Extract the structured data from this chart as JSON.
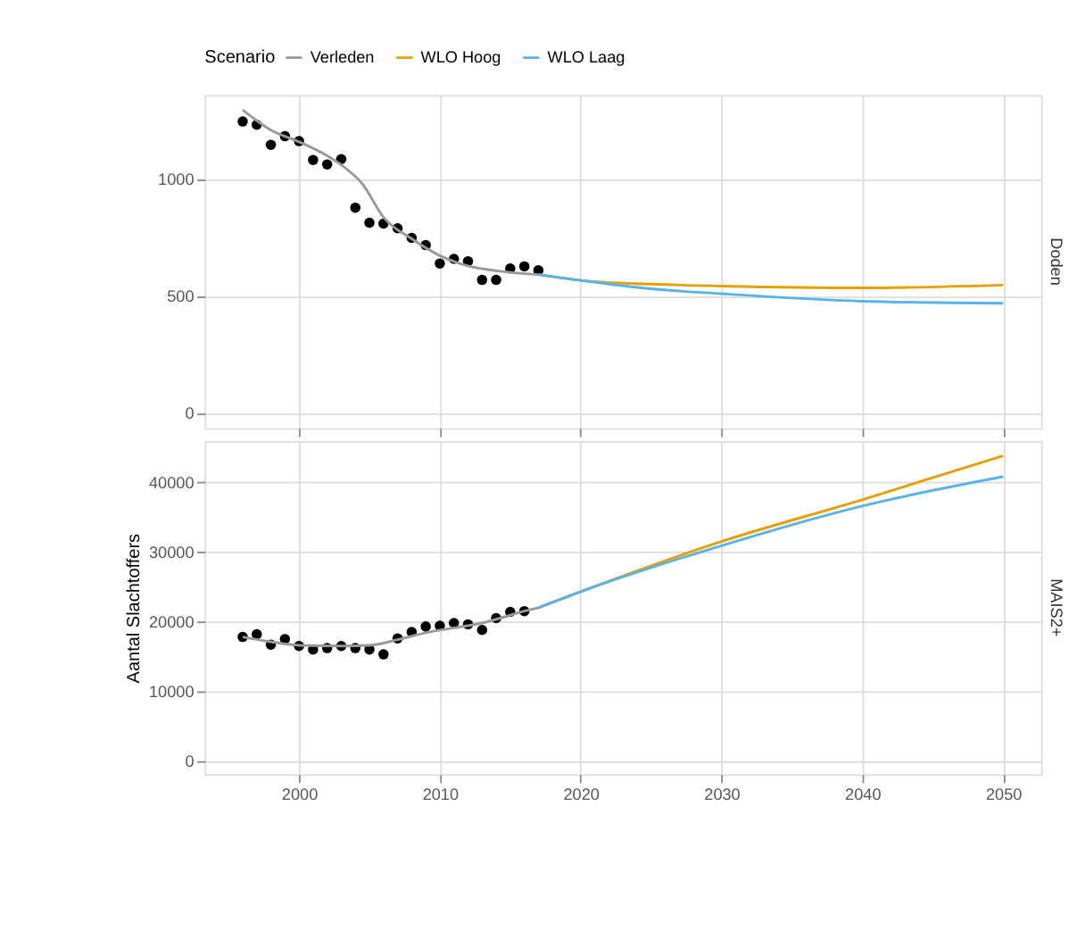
{
  "chart_data": [
    {
      "type": "line",
      "title": "Doden",
      "legend_title": "Scenario",
      "legend": "top",
      "grid": true,
      "tick_labels": "y",
      "xlim": [
        1993.3,
        2052.7
      ],
      "xticks": [
        2000,
        2010,
        2020,
        2030,
        2040,
        2050
      ],
      "ylim": [
        -65,
        1360
      ],
      "yticks": [
        0,
        500,
        1000
      ],
      "series": [
        {
          "type": "scatter",
          "marker": "circle",
          "color": "#000000",
          "x": [
            1996,
            1997,
            1998,
            1999,
            2000,
            2001,
            2002,
            2003,
            2004,
            2005,
            2006,
            2007,
            2008,
            2009,
            2010,
            2011,
            2012,
            2013,
            2014,
            2015,
            2016,
            2017
          ],
          "values": [
            1247,
            1233,
            1147,
            1184,
            1163,
            1082,
            1063,
            1086,
            878,
            814,
            810,
            790,
            749,
            718,
            639,
            659,
            649,
            569,
            569,
            618,
            627,
            610
          ]
        },
        {
          "name": "Verleden",
          "color": "#999999",
          "x": [
            1996,
            1998,
            2000,
            2002,
            2003,
            2004.5,
            2006,
            2008,
            2010,
            2012,
            2014,
            2017
          ],
          "values": [
            1296,
            1210,
            1160,
            1100,
            1061,
            980,
            837,
            745,
            673,
            629,
            608,
            592
          ]
        },
        {
          "name": "WLO Hoog",
          "color": "#E69F00",
          "x": [
            2017,
            2020,
            2025,
            2030,
            2040,
            2050
          ],
          "values": [
            592,
            567,
            551,
            543,
            535,
            547
          ]
        },
        {
          "name": "WLO Laag",
          "color": "#56B4E9",
          "x": [
            2017,
            2020,
            2025,
            2030,
            2040,
            2050
          ],
          "values": [
            592,
            567,
            531,
            510,
            478,
            469
          ]
        }
      ]
    },
    {
      "type": "line",
      "title": "MAIS2+",
      "ylabel": "Aantal Slachtoffers",
      "grid": true,
      "xlim": [
        1993.3,
        2052.7
      ],
      "xticks": [
        2000,
        2010,
        2020,
        2030,
        2040,
        2050
      ],
      "ylim": [
        -1900,
        45900
      ],
      "yticks": [
        0,
        10000,
        20000,
        30000,
        40000
      ],
      "series": [
        {
          "type": "scatter",
          "marker": "circle",
          "color": "#000000",
          "x": [
            1996,
            1997,
            1998,
            1999,
            2000,
            2001,
            2002,
            2003,
            2004,
            2005,
            2006,
            2007,
            2008,
            2009,
            2010,
            2011,
            2012,
            2013,
            2014,
            2015,
            2016
          ],
          "values": [
            17800,
            18200,
            16700,
            17500,
            16500,
            16000,
            16200,
            16500,
            16200,
            16000,
            15300,
            17600,
            18500,
            19300,
            19400,
            19800,
            19600,
            18800,
            20500,
            21400,
            21500
          ]
        },
        {
          "color": "#999999",
          "x": [
            1996,
            1998,
            2000,
            2003,
            2005,
            2007,
            2009,
            2011,
            2013,
            2016,
            2017
          ],
          "values": [
            17800,
            17100,
            16600,
            16500,
            16600,
            17400,
            18400,
            19100,
            19800,
            21500,
            22000
          ]
        },
        {
          "color": "#E69F00",
          "x": [
            2017,
            2020,
            2030,
            2040,
            2050
          ],
          "values": [
            22000,
            24300,
            31500,
            37500,
            43800
          ]
        },
        {
          "color": "#56B4E9",
          "x": [
            2017,
            2020,
            2030,
            2040,
            2050
          ],
          "values": [
            22000,
            24300,
            30900,
            36600,
            40800
          ]
        }
      ]
    }
  ]
}
